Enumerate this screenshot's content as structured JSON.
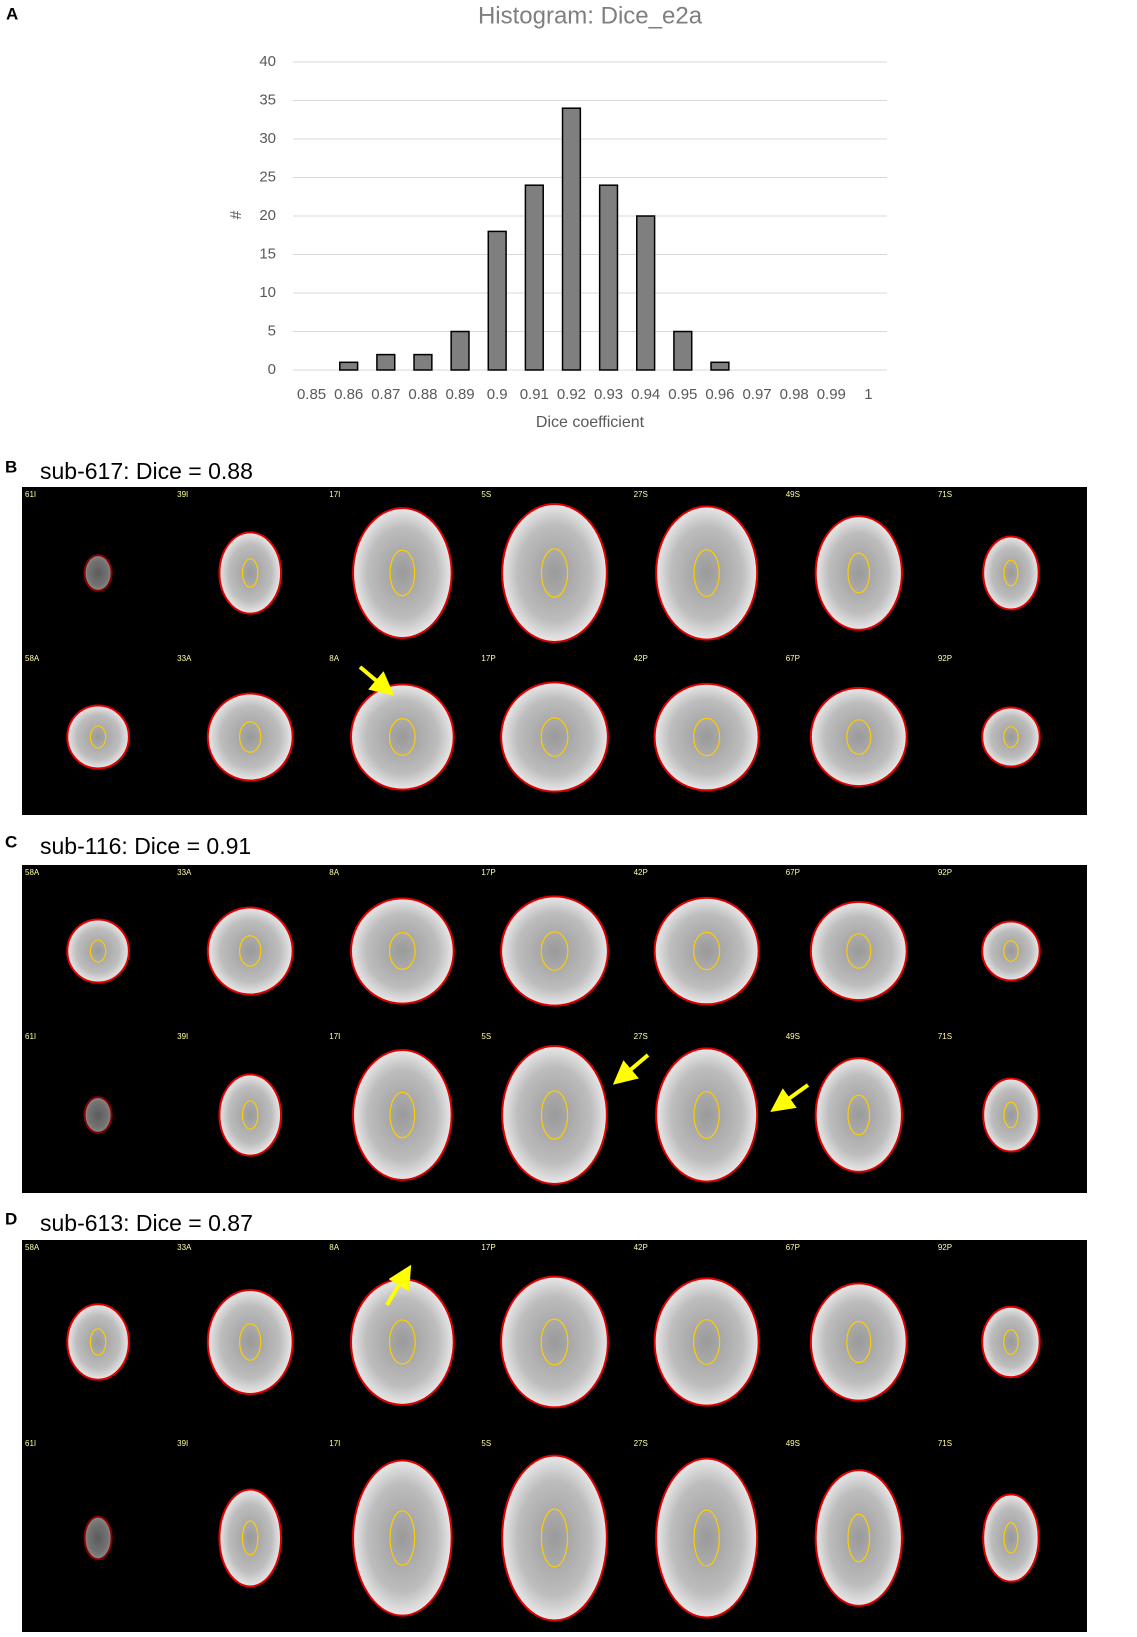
{
  "chart_data": {
    "type": "bar",
    "label": "A",
    "title": "Histogram: Dice_e2a",
    "x_label": "Dice coefficient",
    "y_label": "#",
    "categories": [
      "0.85",
      "0.86",
      "0.87",
      "0.88",
      "0.89",
      "0.9",
      "0.91",
      "0.92",
      "0.93",
      "0.94",
      "0.95",
      "0.96",
      "0.97",
      "0.98",
      "0.99",
      "1"
    ],
    "values": [
      0,
      1,
      2,
      2,
      5,
      18,
      24,
      34,
      24,
      20,
      5,
      1,
      0,
      0,
      0,
      0
    ],
    "color": "#7f7f7f",
    "edge_color": "#000000",
    "ylim": [
      0,
      40
    ],
    "yticks": [
      0,
      5,
      10,
      15,
      20,
      25,
      30,
      35,
      40
    ],
    "grid": true
  },
  "panels": [
    {
      "label": "B",
      "title": "sub-617: Dice = 0.88",
      "rows": [
        [
          "61I",
          "39I",
          "17I",
          "5S",
          "27S",
          "49S",
          "71S"
        ],
        [
          "58A",
          "33A",
          "8A",
          "17P",
          "42P",
          "67P",
          "92P"
        ]
      ]
    },
    {
      "label": "C",
      "title": "sub-116: Dice = 0.91",
      "rows": [
        [
          "58A",
          "33A",
          "8A",
          "17P",
          "42P",
          "67P",
          "92P"
        ],
        [
          "61I",
          "39I",
          "17I",
          "5S",
          "27S",
          "49S",
          "71S"
        ]
      ]
    },
    {
      "label": "D",
      "title": "sub-613: Dice = 0.87",
      "rows": [
        [
          "58A",
          "33A",
          "8A",
          "17P",
          "42P",
          "67P",
          "92P"
        ],
        [
          "61I",
          "39I",
          "17I",
          "5S",
          "27S",
          "49S",
          "71S"
        ]
      ]
    }
  ]
}
